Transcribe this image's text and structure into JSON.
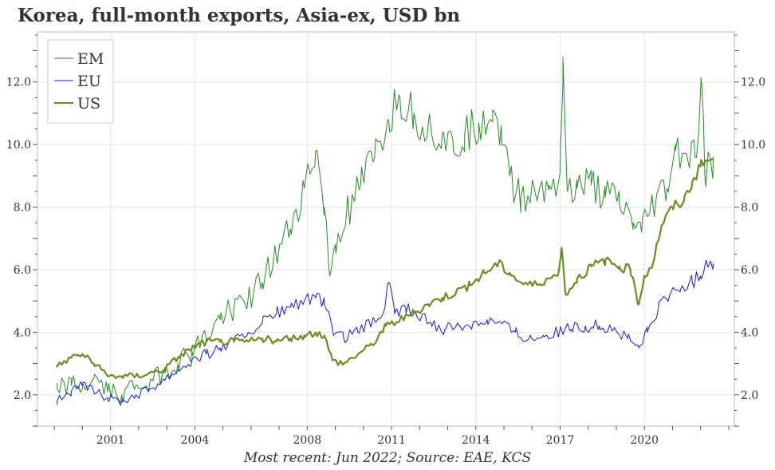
{
  "title": "Korea, full-month exports, Asia-ex, USD bn",
  "caption": "Most recent: Jun 2022; Source: EAE, KCS",
  "chart_data": {
    "type": "line",
    "title": "Korea, full-month exports, Asia-ex, USD bn",
    "xlabel": "",
    "ylabel": "",
    "xlim": [
      1998.4,
      2023.2
    ],
    "ylim": [
      1.0,
      13.6
    ],
    "x_ticks": [
      "2001",
      "2004",
      "2008",
      "2011",
      "2014",
      "2017",
      "2020"
    ],
    "x_tick_values": [
      2001,
      2004,
      2008,
      2011,
      2014,
      2017,
      2020
    ],
    "y_ticks": [
      "2.0",
      "4.0",
      "6.0",
      "8.0",
      "10.0",
      "12.0"
    ],
    "y_tick_values": [
      2,
      4,
      6,
      8,
      10,
      12
    ],
    "grid": true,
    "legend_position": "top-left",
    "colors": {
      "EM": "#2a8a2a",
      "EU": "#1a1adc",
      "US": "#6b8e23"
    },
    "series_keypoints": {
      "EM": [
        [
          1999.1,
          2.2
        ],
        [
          1999.6,
          2.3
        ],
        [
          2000.0,
          2.2
        ],
        [
          2000.4,
          2.5
        ],
        [
          2000.9,
          2.1
        ],
        [
          2001.4,
          2.0
        ],
        [
          2001.9,
          2.3
        ],
        [
          2002.4,
          2.4
        ],
        [
          2002.9,
          2.7
        ],
        [
          2003.4,
          3.0
        ],
        [
          2003.9,
          3.4
        ],
        [
          2004.4,
          3.8
        ],
        [
          2004.9,
          4.4
        ],
        [
          2005.4,
          4.8
        ],
        [
          2005.9,
          5.1
        ],
        [
          2006.4,
          5.6
        ],
        [
          2006.9,
          6.4
        ],
        [
          2007.4,
          7.3
        ],
        [
          2007.9,
          8.6
        ],
        [
          2008.3,
          9.8
        ],
        [
          2008.6,
          8.0
        ],
        [
          2008.8,
          5.8
        ],
        [
          2009.0,
          6.8
        ],
        [
          2009.4,
          7.8
        ],
        [
          2009.9,
          8.7
        ],
        [
          2010.4,
          9.6
        ],
        [
          2010.9,
          10.8
        ],
        [
          2011.3,
          11.5
        ],
        [
          2011.8,
          11.0
        ],
        [
          2012.3,
          10.6
        ],
        [
          2012.8,
          10.3
        ],
        [
          2013.2,
          9.8
        ],
        [
          2013.6,
          10.3
        ],
        [
          2014.1,
          10.7
        ],
        [
          2014.6,
          11.1
        ],
        [
          2014.9,
          10.6
        ],
        [
          2015.2,
          9.0
        ],
        [
          2015.6,
          8.3
        ],
        [
          2016.1,
          8.5
        ],
        [
          2016.6,
          8.7
        ],
        [
          2017.0,
          9.1
        ],
        [
          2017.1,
          12.8
        ],
        [
          2017.25,
          8.6
        ],
        [
          2017.6,
          8.6
        ],
        [
          2018.1,
          8.7
        ],
        [
          2018.6,
          8.3
        ],
        [
          2019.1,
          8.1
        ],
        [
          2019.6,
          7.5
        ],
        [
          2019.9,
          7.2
        ],
        [
          2020.3,
          8.1
        ],
        [
          2020.8,
          8.6
        ],
        [
          2021.1,
          9.8
        ],
        [
          2021.5,
          9.7
        ],
        [
          2021.8,
          9.6
        ],
        [
          2022.05,
          11.8
        ],
        [
          2022.15,
          9.0
        ],
        [
          2022.45,
          9.6
        ]
      ],
      "EU": [
        [
          1999.1,
          1.8
        ],
        [
          1999.6,
          2.1
        ],
        [
          2000.0,
          2.3
        ],
        [
          2000.4,
          2.1
        ],
        [
          2000.9,
          1.9
        ],
        [
          2001.4,
          1.8
        ],
        [
          2001.9,
          2.0
        ],
        [
          2002.4,
          2.2
        ],
        [
          2002.9,
          2.5
        ],
        [
          2003.4,
          2.8
        ],
        [
          2003.9,
          3.1
        ],
        [
          2004.4,
          3.3
        ],
        [
          2004.9,
          3.5
        ],
        [
          2005.4,
          3.7
        ],
        [
          2005.9,
          4.0
        ],
        [
          2006.4,
          4.3
        ],
        [
          2006.9,
          4.6
        ],
        [
          2007.4,
          4.8
        ],
        [
          2007.9,
          5.0
        ],
        [
          2008.3,
          5.1
        ],
        [
          2008.6,
          4.9
        ],
        [
          2008.9,
          4.1
        ],
        [
          2009.3,
          3.8
        ],
        [
          2009.8,
          4.0
        ],
        [
          2010.3,
          4.3
        ],
        [
          2010.7,
          4.6
        ],
        [
          2010.9,
          5.6
        ],
        [
          2011.1,
          4.6
        ],
        [
          2011.5,
          4.8
        ],
        [
          2011.9,
          4.5
        ],
        [
          2012.4,
          4.3
        ],
        [
          2012.9,
          4.1
        ],
        [
          2013.4,
          4.2
        ],
        [
          2013.9,
          4.3
        ],
        [
          2014.4,
          4.4
        ],
        [
          2014.9,
          4.3
        ],
        [
          2015.4,
          4.0
        ],
        [
          2015.9,
          3.8
        ],
        [
          2016.4,
          3.9
        ],
        [
          2016.9,
          4.0
        ],
        [
          2017.4,
          4.1
        ],
        [
          2017.9,
          4.2
        ],
        [
          2018.4,
          4.2
        ],
        [
          2018.9,
          4.1
        ],
        [
          2019.4,
          3.8
        ],
        [
          2019.8,
          3.5
        ],
        [
          2020.1,
          4.0
        ],
        [
          2020.5,
          4.8
        ],
        [
          2020.9,
          5.2
        ],
        [
          2021.3,
          5.4
        ],
        [
          2021.7,
          5.6
        ],
        [
          2022.0,
          5.8
        ],
        [
          2022.2,
          6.3
        ],
        [
          2022.45,
          6.2
        ]
      ],
      "US": [
        [
          1999.1,
          2.9
        ],
        [
          1999.6,
          3.2
        ],
        [
          2000.0,
          3.3
        ],
        [
          2000.4,
          3.0
        ],
        [
          2000.9,
          2.6
        ],
        [
          2001.4,
          2.6
        ],
        [
          2001.9,
          2.6
        ],
        [
          2002.4,
          2.7
        ],
        [
          2002.9,
          2.8
        ],
        [
          2003.4,
          3.2
        ],
        [
          2003.9,
          3.5
        ],
        [
          2004.4,
          3.7
        ],
        [
          2004.9,
          3.7
        ],
        [
          2005.4,
          3.7
        ],
        [
          2005.9,
          3.7
        ],
        [
          2006.4,
          3.8
        ],
        [
          2006.9,
          3.7
        ],
        [
          2007.4,
          3.8
        ],
        [
          2007.9,
          3.9
        ],
        [
          2008.3,
          4.0
        ],
        [
          2008.6,
          3.9
        ],
        [
          2008.9,
          3.1
        ],
        [
          2009.3,
          3.0
        ],
        [
          2009.8,
          3.3
        ],
        [
          2010.3,
          3.6
        ],
        [
          2010.8,
          4.2
        ],
        [
          2011.3,
          4.4
        ],
        [
          2011.8,
          4.6
        ],
        [
          2012.3,
          4.9
        ],
        [
          2012.8,
          5.1
        ],
        [
          2013.3,
          5.3
        ],
        [
          2013.8,
          5.5
        ],
        [
          2014.3,
          5.9
        ],
        [
          2014.8,
          6.2
        ],
        [
          2015.2,
          5.9
        ],
        [
          2015.6,
          5.6
        ],
        [
          2016.0,
          5.5
        ],
        [
          2016.5,
          5.7
        ],
        [
          2016.9,
          5.8
        ],
        [
          2017.05,
          6.7
        ],
        [
          2017.2,
          5.2
        ],
        [
          2017.6,
          5.7
        ],
        [
          2018.1,
          6.1
        ],
        [
          2018.6,
          6.3
        ],
        [
          2019.1,
          6.1
        ],
        [
          2019.5,
          6.0
        ],
        [
          2019.8,
          4.9
        ],
        [
          2020.0,
          5.8
        ],
        [
          2020.3,
          6.2
        ],
        [
          2020.6,
          7.4
        ],
        [
          2021.0,
          8.0
        ],
        [
          2021.4,
          8.2
        ],
        [
          2021.7,
          8.8
        ],
        [
          2022.0,
          9.3
        ],
        [
          2022.25,
          9.5
        ],
        [
          2022.45,
          9.5
        ]
      ]
    },
    "series": [
      {
        "name": "EM"
      },
      {
        "name": "EU"
      },
      {
        "name": "US"
      }
    ]
  }
}
